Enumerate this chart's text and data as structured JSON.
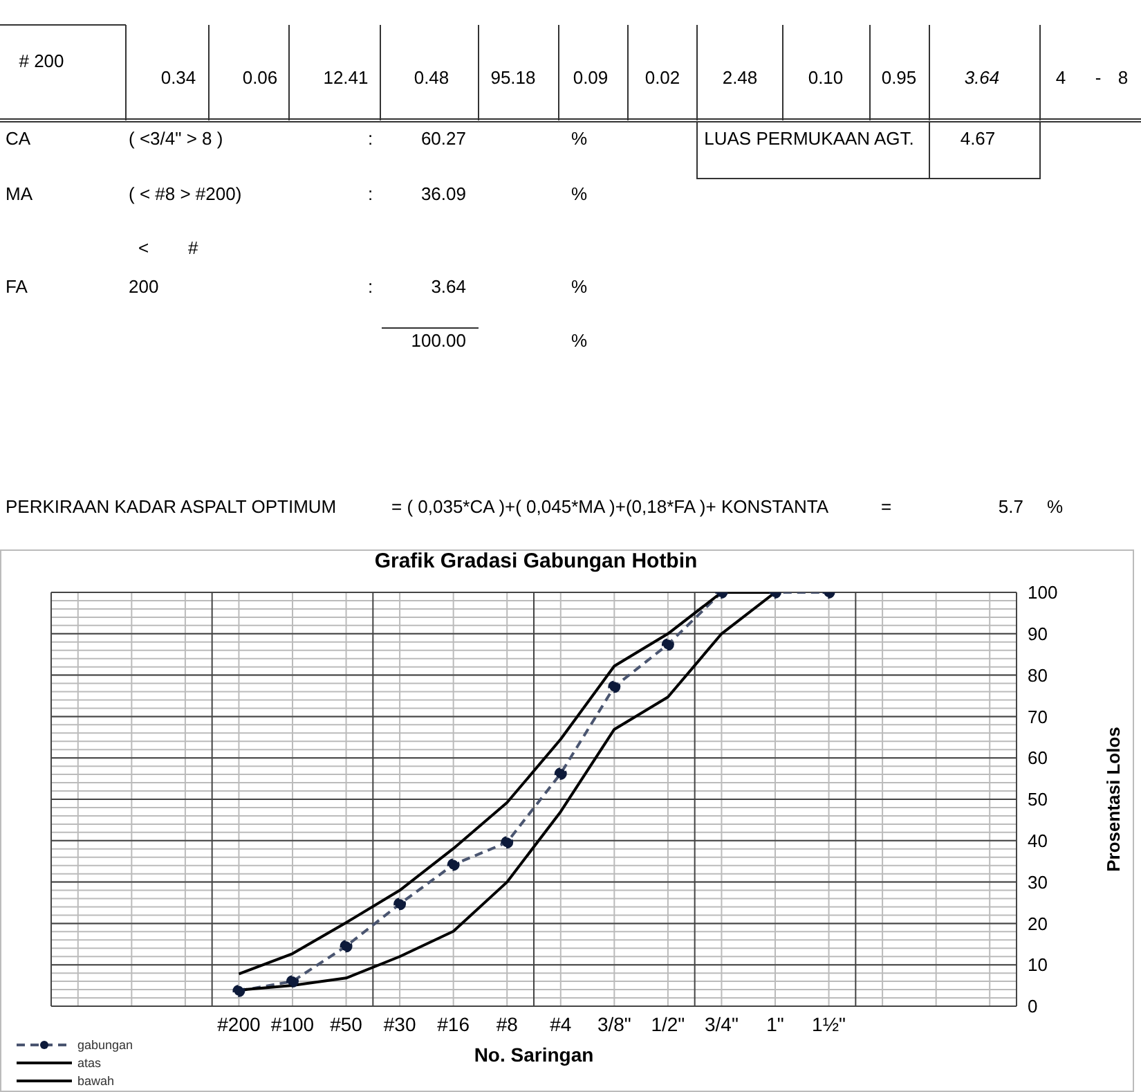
{
  "chart_data": {
    "type": "line",
    "title": "Grafik Gradasi Gabungan Hotbin",
    "xlabel": "No. Saringan",
    "ylabel": "Prosentasi Lolos",
    "annotations": [
      "# 200",
      "0.34",
      "0.06",
      "12.41",
      "0.48",
      "95.18",
      "0.09",
      "0.02",
      "2.48",
      "0.10",
      "0.95",
      "3.64",
      "4",
      "-",
      "8",
      "CA",
      "( <3/4\" > 8 )",
      ":",
      "60.27",
      "%",
      "LUAS PERMUKAAN AGT.",
      "4.67",
      "MA",
      "( < #8 > #200)",
      ":",
      "36.09",
      "%",
      "<",
      "#",
      "FA",
      "200",
      ":",
      "3.64",
      "%",
      "100.00",
      "%",
      "PERKIRAAN KADAR ASPALT OPTIMUM",
      "= ( 0,035*CA )+( 0,045*MA )+(0,18*FA )+ KONSTANTA",
      "=",
      "5.7",
      "%"
    ],
    "categories": [
      null,
      null,
      null,
      "#200",
      "#100",
      "#50",
      "#30",
      "#16",
      "#8",
      "#4",
      "3/8\"",
      "1/2\"",
      "3/4\"",
      "1\"",
      "1½\"",
      null,
      null,
      null
    ],
    "ylim": [
      0,
      100
    ],
    "yticks": [
      0,
      10,
      20,
      30,
      40,
      50,
      60,
      70,
      80,
      90,
      100
    ],
    "grid": true,
    "legend": "bottom left",
    "series": [
      {
        "name": "gabungan",
        "color": "#4a5570",
        "marker": "circle",
        "line_style": "dashed",
        "values": [
          null,
          null,
          null,
          3.7,
          6,
          14.5,
          24.7,
          34.2,
          39.6,
          56.2,
          77.2,
          87.4,
          100,
          100,
          100,
          null,
          null,
          null
        ]
      },
      {
        "name": "atas",
        "color": "#000000",
        "marker": "none",
        "line_style": "solid",
        "values": [
          null,
          null,
          null,
          7.8,
          12.7,
          20.2,
          28,
          38.1,
          49.2,
          64.5,
          82.2,
          90,
          100,
          100,
          null,
          null,
          null,
          null
        ]
      },
      {
        "name": "bawah",
        "color": "#000000",
        "marker": "none",
        "line_style": "solid",
        "values": [
          null,
          null,
          null,
          3.9,
          5,
          6.8,
          12,
          18.1,
          30,
          47,
          66.9,
          74.7,
          90,
          100,
          null,
          null,
          null,
          null
        ]
      }
    ]
  }
}
